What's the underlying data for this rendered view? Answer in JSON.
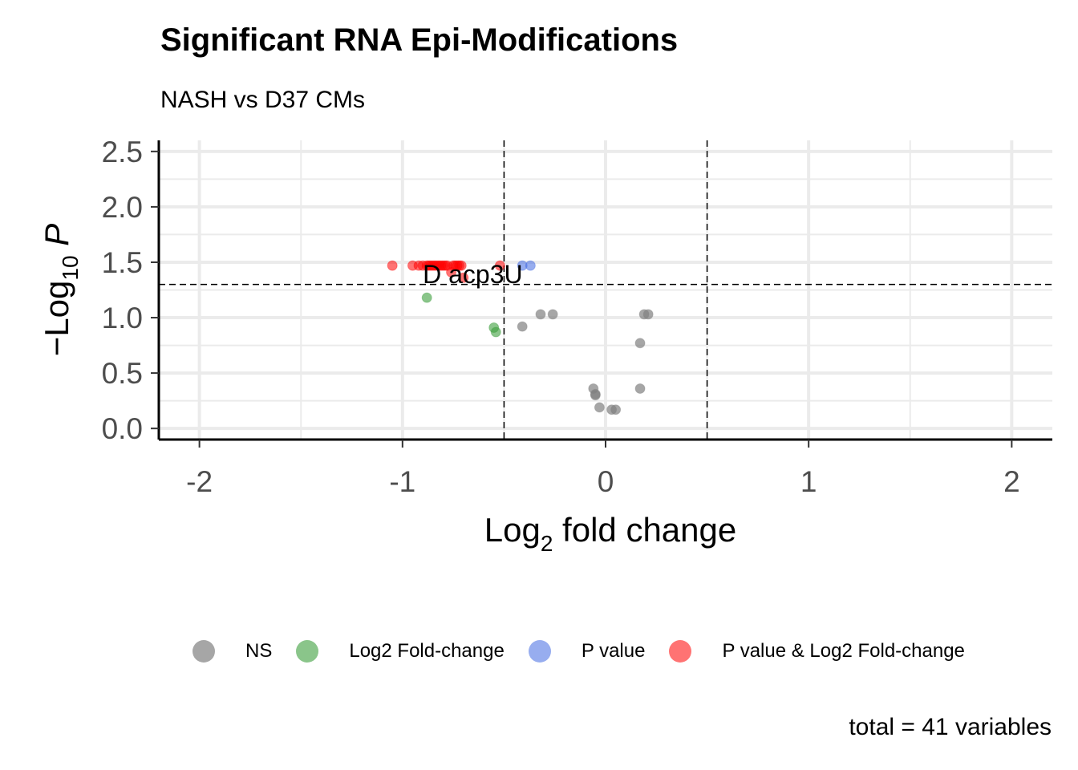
{
  "title": "Significant RNA Epi-Modifications",
  "subtitle": "NASH vs D37 CMs",
  "caption": "total = 41 variables",
  "legend": [
    {
      "label": "NS",
      "color": "#808080"
    },
    {
      "label": "Log2 Fold-change",
      "color": "#3C9E3C"
    },
    {
      "label": "P value",
      "color": "#4169E1"
    },
    {
      "label": "P value & Log2 Fold-change",
      "color": "#FF0000"
    }
  ],
  "chart_data": {
    "type": "scatter",
    "title": "Significant RNA Epi-Modifications",
    "subtitle": "NASH vs D37 CMs",
    "xlabel": "Log2 fold change",
    "ylabel": "-Log10 P",
    "xlim": [
      -2.2,
      2.2
    ],
    "ylim": [
      -0.1,
      2.6
    ],
    "xticks": [
      -2,
      -1,
      0,
      1,
      2
    ],
    "xtick_labels": [
      "-2",
      "-1",
      "0",
      "1",
      "2"
    ],
    "yticks": [
      0.0,
      0.5,
      1.0,
      1.5,
      2.0,
      2.5
    ],
    "ytick_labels": [
      "0.0",
      "0.5",
      "1.0",
      "1.5",
      "2.0",
      "2.5"
    ],
    "grid": true,
    "legend_position": "bottom",
    "cutoffs": {
      "x": [
        -0.5,
        0.5
      ],
      "y": 1.3
    },
    "label": {
      "text": "D acp3U",
      "x": -0.9,
      "y": 1.4
    },
    "series": [
      {
        "name": "NS",
        "color": "#808080",
        "points": [
          [
            -0.32,
            1.03
          ],
          [
            -0.26,
            1.03
          ],
          [
            0.19,
            1.03
          ],
          [
            0.21,
            1.03
          ],
          [
            -0.41,
            0.92
          ],
          [
            0.17,
            0.77
          ],
          [
            -0.06,
            0.36
          ],
          [
            -0.05,
            0.31
          ],
          [
            -0.05,
            0.3
          ],
          [
            0.17,
            0.36
          ],
          [
            -0.03,
            0.19
          ],
          [
            0.03,
            0.17
          ],
          [
            0.05,
            0.17
          ]
        ]
      },
      {
        "name": "Log2 Fold-change",
        "color": "#3C9E3C",
        "points": [
          [
            -0.88,
            1.18
          ],
          [
            -0.55,
            0.91
          ],
          [
            -0.54,
            0.87
          ]
        ]
      },
      {
        "name": "P value",
        "color": "#4169E1",
        "points": [
          [
            -0.41,
            1.47
          ],
          [
            -0.37,
            1.47
          ]
        ]
      },
      {
        "name": "P value & Log2 Fold-change",
        "color": "#FF0000",
        "points": [
          [
            -1.05,
            1.47
          ],
          [
            -0.95,
            1.47
          ],
          [
            -0.9,
            1.47
          ],
          [
            -0.88,
            1.47
          ],
          [
            -0.86,
            1.47
          ],
          [
            -0.84,
            1.47
          ],
          [
            -0.83,
            1.47
          ],
          [
            -0.82,
            1.47
          ],
          [
            -0.8,
            1.47
          ],
          [
            -0.75,
            1.47
          ],
          [
            -0.73,
            1.47
          ],
          [
            -0.72,
            1.47
          ],
          [
            -0.74,
            1.47
          ],
          [
            -0.52,
            1.47
          ],
          [
            -0.76,
            1.41
          ],
          [
            -0.7,
            1.36
          ],
          [
            -0.85,
            1.47
          ],
          [
            -0.81,
            1.47
          ],
          [
            -0.78,
            1.47
          ],
          [
            -0.71,
            1.47
          ],
          [
            -0.87,
            1.47
          ],
          [
            -0.79,
            1.47
          ],
          [
            -0.92,
            1.47
          ]
        ]
      }
    ]
  }
}
